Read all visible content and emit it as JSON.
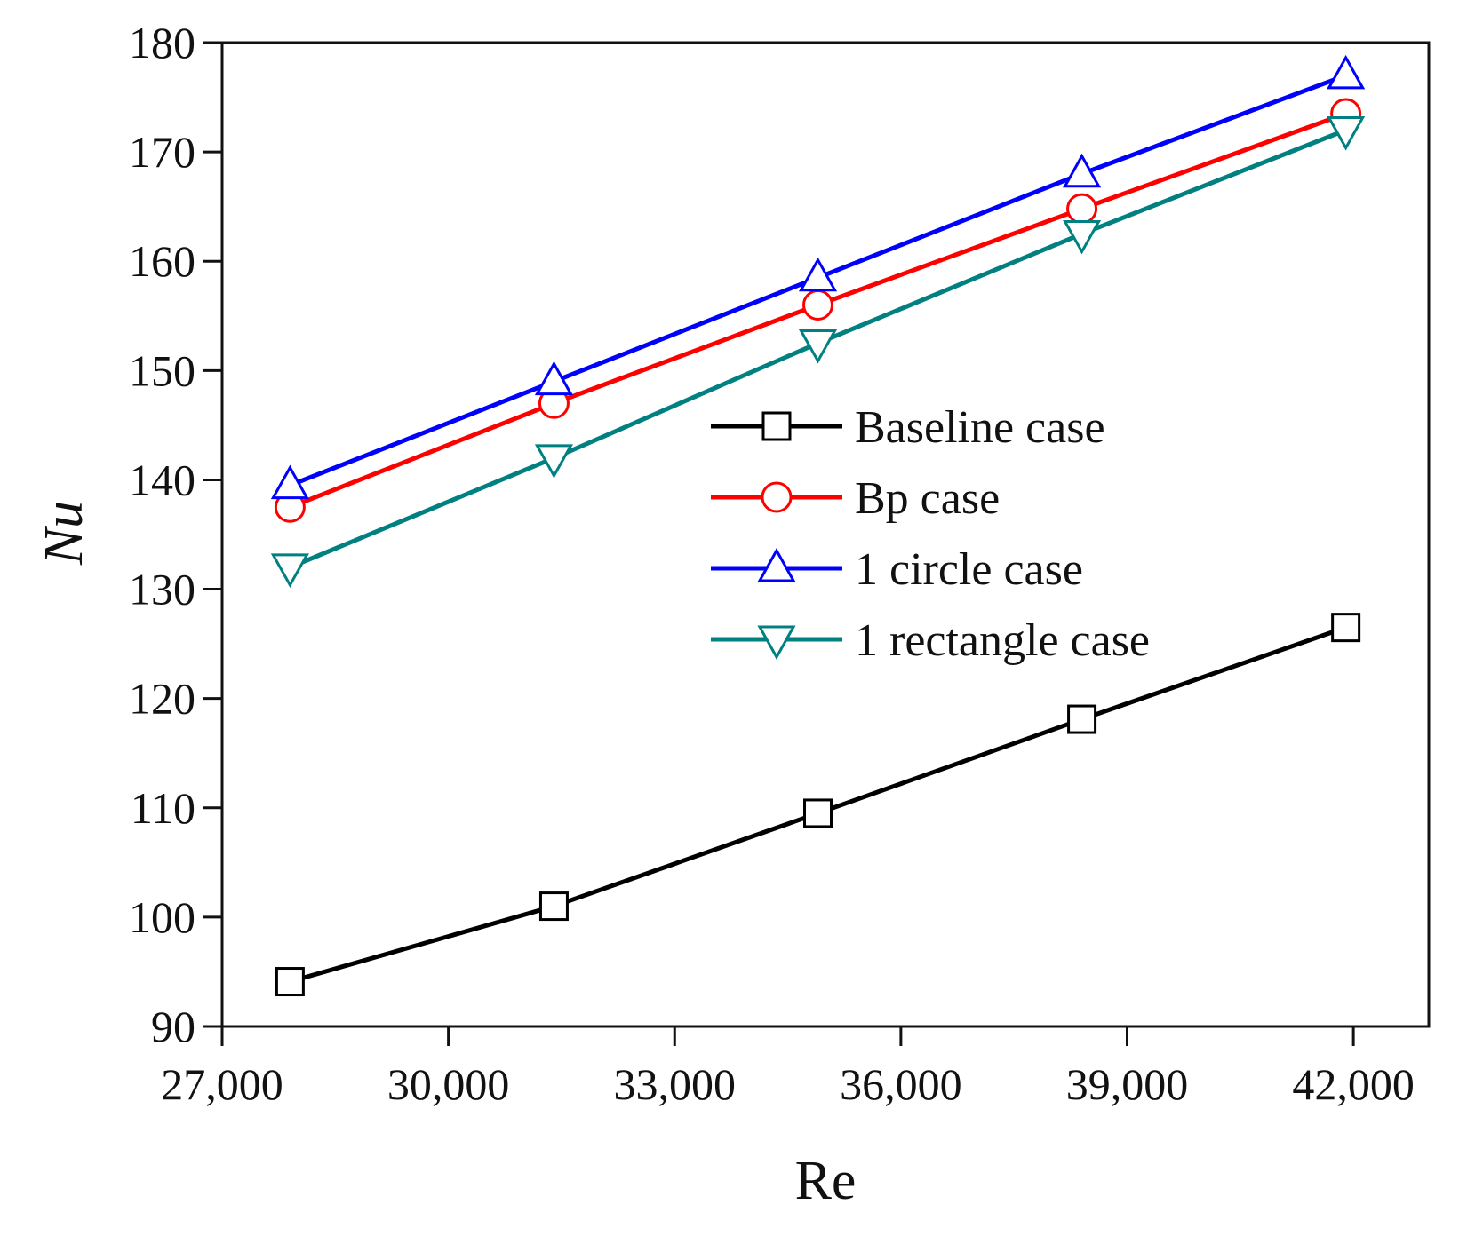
{
  "chart_data": {
    "type": "line",
    "title": "",
    "xlabel": "Re",
    "ylabel": "Nu",
    "xlim": [
      27000,
      43000
    ],
    "ylim": [
      90,
      180
    ],
    "x_ticks": [
      27000,
      30000,
      33000,
      36000,
      39000,
      42000
    ],
    "x_tick_labels": [
      "27,000",
      "30,000",
      "33,000",
      "36,000",
      "39,000",
      "42,000"
    ],
    "y_ticks": [
      90,
      100,
      110,
      120,
      130,
      140,
      150,
      160,
      170,
      180
    ],
    "y_tick_labels": [
      "90",
      "100",
      "110",
      "120",
      "130",
      "140",
      "150",
      "160",
      "170",
      "180"
    ],
    "grid": false,
    "legend_position": "center-right",
    "x": [
      27900,
      31400,
      34900,
      38400,
      41900
    ],
    "series": [
      {
        "name": "Baseline case",
        "marker": "square",
        "color": "#000000",
        "values": [
          94.1,
          101.0,
          109.5,
          118.1,
          126.5
        ]
      },
      {
        "name": "Bp case",
        "marker": "circle",
        "color": "#ff0000",
        "values": [
          137.5,
          147.0,
          156.0,
          164.8,
          173.5
        ]
      },
      {
        "name": "1 circle case",
        "marker": "triangle-up",
        "color": "#0000ff",
        "values": [
          139.5,
          149.0,
          158.5,
          168.0,
          177.0
        ]
      },
      {
        "name": "1 rectangle case",
        "marker": "triangle-down",
        "color": "#008080",
        "values": [
          132.0,
          142.0,
          152.5,
          162.5,
          172.0
        ]
      }
    ]
  }
}
